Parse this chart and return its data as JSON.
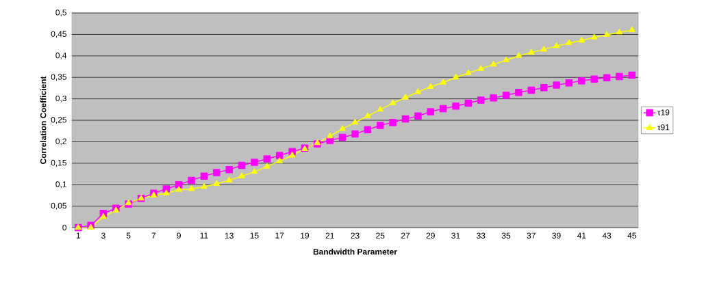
{
  "chart_data": {
    "type": "line",
    "xlabel": "Bandwidth Parameter",
    "ylabel": "Correlation Coefficient",
    "categories": [
      "1",
      null,
      "3",
      null,
      "5",
      null,
      "7",
      null,
      "9",
      null,
      "11",
      null,
      "13",
      null,
      "15",
      null,
      "17",
      null,
      "19",
      null,
      "21",
      null,
      "23",
      null,
      "25",
      null,
      "27",
      null,
      "29",
      null,
      "31",
      null,
      "33",
      null,
      "35",
      null,
      "37",
      null,
      "39",
      null,
      "41",
      null,
      "43",
      null,
      "45"
    ],
    "series": [
      {
        "name": "τ19",
        "color": "#ff00ff",
        "marker": "square",
        "values": [
          0,
          0.005,
          0.033,
          0.045,
          0.055,
          0.068,
          0.08,
          0.09,
          0.1,
          0.11,
          0.12,
          0.128,
          0.135,
          0.145,
          0.152,
          0.16,
          0.168,
          0.177,
          0.185,
          0.195,
          0.203,
          0.21,
          0.218,
          0.228,
          0.238,
          0.245,
          0.253,
          0.26,
          0.27,
          0.277,
          0.283,
          0.29,
          0.297,
          0.302,
          0.308,
          0.315,
          0.32,
          0.326,
          0.332,
          0.337,
          0.342,
          0.346,
          0.349,
          0.352,
          0.355
        ]
      },
      {
        "name": "τ91",
        "color": "#ffff00",
        "marker": "triangle",
        "values": [
          0,
          0,
          0.025,
          0.04,
          0.057,
          0.068,
          0.075,
          0.08,
          0.088,
          0.09,
          0.095,
          0.102,
          0.11,
          0.12,
          0.13,
          0.142,
          0.155,
          0.168,
          0.183,
          0.197,
          0.213,
          0.23,
          0.245,
          0.26,
          0.275,
          0.29,
          0.303,
          0.316,
          0.328,
          0.338,
          0.35,
          0.36,
          0.37,
          0.38,
          0.39,
          0.4,
          0.408,
          0.415,
          0.423,
          0.43,
          0.436,
          0.443,
          0.449,
          0.455,
          0.46
        ]
      }
    ],
    "ylim": [
      0,
      0.5
    ],
    "yticks": [
      {
        "value": 0,
        "label": "0"
      },
      {
        "value": 0.05,
        "label": "0,05"
      },
      {
        "value": 0.1,
        "label": "0,1"
      },
      {
        "value": 0.15,
        "label": "0,15"
      },
      {
        "value": 0.2,
        "label": "0,2"
      },
      {
        "value": 0.25,
        "label": "0,25"
      },
      {
        "value": 0.3,
        "label": "0,3"
      },
      {
        "value": 0.35,
        "label": "0,35"
      },
      {
        "value": 0.4,
        "label": "0,4"
      },
      {
        "value": 0.45,
        "label": "0,45"
      },
      {
        "value": 0.5,
        "label": "0,5"
      }
    ],
    "grid": "y",
    "legend": "right",
    "line_style": "solid"
  }
}
